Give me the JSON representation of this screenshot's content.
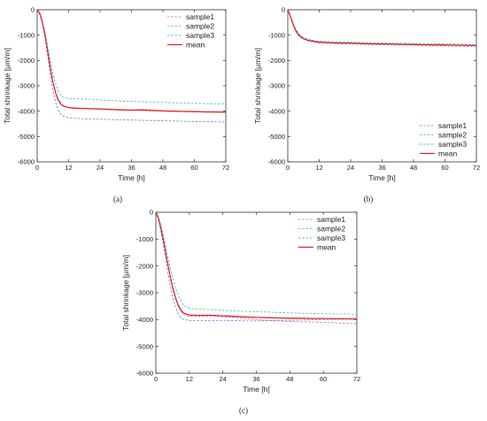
{
  "colors": {
    "sample1": "#d65fb0",
    "sample2": "#3dbfa1",
    "sample3": "#4e86c9",
    "mean": "#e0262a",
    "axis": "#333333"
  },
  "chart_data": [
    {
      "type": "line",
      "panel_label": "(a)",
      "xlabel": "Time [h]",
      "ylabel": "Total shrinkage [μm/m]",
      "xlim": [
        0,
        72
      ],
      "ylim": [
        -6000,
        0
      ],
      "xticks": [
        "0",
        "12",
        "24",
        "36",
        "48",
        "60",
        "72"
      ],
      "yticks": [
        "0",
        "-1000",
        "-2000",
        "-3000",
        "-4000",
        "-5000",
        "-6000"
      ],
      "legend_position": "top-right",
      "series": [
        {
          "name": "sample1",
          "style": "dash",
          "x": [
            0,
            1,
            2,
            3,
            4,
            5,
            6,
            7,
            8,
            9,
            10,
            12,
            14,
            16,
            18,
            20,
            24,
            28,
            32,
            36,
            40,
            44,
            48,
            52,
            56,
            60,
            64,
            68,
            72
          ],
          "y": [
            0,
            -150,
            -500,
            -1000,
            -1650,
            -2300,
            -2850,
            -3250,
            -3520,
            -3680,
            -3780,
            -3860,
            -3890,
            -3900,
            -3900,
            -3910,
            -3920,
            -3940,
            -3960,
            -3970,
            -3980,
            -3990,
            -4000,
            -4010,
            -4020,
            -4030,
            -4040,
            -4050,
            -4050
          ]
        },
        {
          "name": "sample2",
          "style": "dash",
          "x": [
            0,
            1,
            2,
            3,
            4,
            5,
            6,
            7,
            8,
            9,
            10,
            12,
            14,
            16,
            18,
            20,
            24,
            28,
            32,
            36,
            40,
            44,
            48,
            52,
            56,
            60,
            64,
            68,
            72
          ],
          "y": [
            0,
            -130,
            -450,
            -900,
            -1450,
            -2000,
            -2500,
            -2900,
            -3200,
            -3370,
            -3450,
            -3500,
            -3510,
            -3510,
            -3520,
            -3530,
            -3560,
            -3580,
            -3600,
            -3610,
            -3630,
            -3640,
            -3660,
            -3670,
            -3680,
            -3690,
            -3700,
            -3710,
            -3720
          ]
        },
        {
          "name": "sample3",
          "style": "dash",
          "x": [
            0,
            1,
            2,
            3,
            4,
            5,
            6,
            7,
            8,
            9,
            10,
            12,
            14,
            16,
            18,
            20,
            24,
            28,
            32,
            36,
            40,
            44,
            48,
            52,
            56,
            60,
            64,
            68,
            72
          ],
          "y": [
            0,
            -170,
            -550,
            -1100,
            -1800,
            -2550,
            -3200,
            -3650,
            -3950,
            -4120,
            -4200,
            -4260,
            -4280,
            -4290,
            -4300,
            -4310,
            -4320,
            -4330,
            -4340,
            -4350,
            -4360,
            -4370,
            -4380,
            -4390,
            -4400,
            -4410,
            -4420,
            -4420,
            -4430
          ]
        },
        {
          "name": "mean",
          "style": "solid",
          "x": [
            0,
            1,
            2,
            3,
            4,
            5,
            6,
            7,
            8,
            9,
            10,
            12,
            14,
            16,
            18,
            20,
            24,
            28,
            32,
            36,
            40,
            44,
            48,
            52,
            56,
            60,
            64,
            68,
            72
          ],
          "y": [
            0,
            -150,
            -500,
            -1000,
            -1630,
            -2280,
            -2850,
            -3270,
            -3560,
            -3720,
            -3800,
            -3860,
            -3880,
            -3890,
            -3890,
            -3900,
            -3910,
            -3930,
            -3950,
            -3960,
            -3950,
            -3970,
            -3990,
            -4000,
            -4010,
            -4020,
            -4030,
            -4030,
            -4040
          ]
        }
      ]
    },
    {
      "type": "line",
      "panel_label": "(b)",
      "xlabel": "Time [h]",
      "ylabel": "Total shrinkage [μm/m]",
      "xlim": [
        0,
        72
      ],
      "ylim": [
        -6000,
        0
      ],
      "xticks": [
        "0",
        "12",
        "24",
        "36",
        "48",
        "60",
        "72"
      ],
      "yticks": [
        "0",
        "-1000",
        "-2000",
        "-3000",
        "-4000",
        "-5000",
        "-6000"
      ],
      "legend_position": "bottom-right",
      "series": [
        {
          "name": "sample1",
          "style": "dash",
          "x": [
            0,
            1,
            2,
            3,
            4,
            5,
            6,
            8,
            10,
            12,
            16,
            20,
            24,
            30,
            36,
            42,
            48,
            54,
            60,
            66,
            72
          ],
          "y": [
            0,
            -300,
            -600,
            -850,
            -1000,
            -1100,
            -1160,
            -1240,
            -1280,
            -1310,
            -1330,
            -1340,
            -1350,
            -1370,
            -1380,
            -1390,
            -1400,
            -1420,
            -1430,
            -1440,
            -1450
          ]
        },
        {
          "name": "sample2",
          "style": "dash",
          "x": [
            0,
            1,
            2,
            3,
            4,
            5,
            6,
            8,
            10,
            12,
            16,
            20,
            24,
            30,
            36,
            42,
            48,
            54,
            60,
            66,
            72
          ],
          "y": [
            0,
            -250,
            -520,
            -760,
            -920,
            -1020,
            -1090,
            -1170,
            -1210,
            -1240,
            -1260,
            -1270,
            -1280,
            -1300,
            -1310,
            -1320,
            -1330,
            -1340,
            -1350,
            -1360,
            -1370
          ]
        },
        {
          "name": "sample3",
          "style": "dash",
          "x": [
            0,
            1,
            2,
            3,
            4,
            5,
            6,
            8,
            10,
            12,
            16,
            20,
            24,
            30,
            36,
            42,
            48,
            54,
            60,
            66,
            72
          ],
          "y": [
            0,
            -280,
            -580,
            -830,
            -990,
            -1090,
            -1160,
            -1230,
            -1270,
            -1290,
            -1310,
            -1320,
            -1330,
            -1340,
            -1350,
            -1360,
            -1370,
            -1380,
            -1390,
            -1400,
            -1410
          ]
        },
        {
          "name": "mean",
          "style": "solid",
          "x": [
            0,
            1,
            2,
            3,
            4,
            5,
            6,
            8,
            10,
            12,
            16,
            20,
            24,
            30,
            36,
            42,
            48,
            54,
            60,
            66,
            72
          ],
          "y": [
            0,
            -270,
            -560,
            -810,
            -970,
            -1070,
            -1140,
            -1210,
            -1250,
            -1280,
            -1300,
            -1310,
            -1320,
            -1340,
            -1350,
            -1360,
            -1370,
            -1380,
            -1390,
            -1400,
            -1410
          ]
        }
      ]
    },
    {
      "type": "line",
      "panel_label": "(c)",
      "xlabel": "Time [h]",
      "ylabel": "Total shrinkage [μm/m]",
      "xlim": [
        0,
        72
      ],
      "ylim": [
        -6000,
        0
      ],
      "xticks": [
        "0",
        "12",
        "24",
        "36",
        "48",
        "60",
        "72"
      ],
      "yticks": [
        "0",
        "-1000",
        "-2000",
        "-3000",
        "-4000",
        "-5000",
        "-6000"
      ],
      "legend_position": "top-right",
      "series": [
        {
          "name": "sample1",
          "style": "dash",
          "x": [
            0,
            1,
            2,
            3,
            4,
            5,
            6,
            7,
            8,
            9,
            10,
            12,
            14,
            16,
            20,
            24,
            28,
            32,
            36,
            40,
            44,
            48,
            52,
            56,
            60,
            64,
            68,
            72
          ],
          "y": [
            0,
            -250,
            -700,
            -1200,
            -1750,
            -2300,
            -2800,
            -3200,
            -3500,
            -3700,
            -3820,
            -3880,
            -3880,
            -3880,
            -3870,
            -3900,
            -3920,
            -3960,
            -4000,
            -4030,
            -4050,
            -4070,
            -4080,
            -4090,
            -4100,
            -4120,
            -4140,
            -4150
          ]
        },
        {
          "name": "sample2",
          "style": "dash",
          "x": [
            0,
            1,
            2,
            3,
            4,
            5,
            6,
            7,
            8,
            9,
            10,
            12,
            14,
            16,
            20,
            24,
            28,
            32,
            36,
            40,
            44,
            48,
            52,
            56,
            60,
            64,
            68,
            72
          ],
          "y": [
            0,
            -200,
            -560,
            -1000,
            -1500,
            -1980,
            -2420,
            -2800,
            -3100,
            -3320,
            -3470,
            -3580,
            -3600,
            -3610,
            -3630,
            -3660,
            -3680,
            -3700,
            -3710,
            -3720,
            -3740,
            -3750,
            -3760,
            -3770,
            -3780,
            -3790,
            -3790,
            -3800
          ]
        },
        {
          "name": "sample3",
          "style": "dash",
          "x": [
            0,
            1,
            2,
            3,
            4,
            5,
            6,
            7,
            8,
            9,
            10,
            12,
            14,
            16,
            20,
            24,
            28,
            32,
            36,
            40,
            44,
            48,
            52,
            56,
            60,
            64,
            68,
            72
          ],
          "y": [
            0,
            -300,
            -800,
            -1400,
            -2050,
            -2650,
            -3150,
            -3520,
            -3780,
            -3930,
            -4000,
            -4030,
            -4040,
            -4040,
            -4040,
            -4030,
            -4040,
            -4050,
            -4050,
            -4040,
            -4030,
            -4030,
            -4020,
            -4010,
            -4000,
            -3990,
            -3990,
            -3980
          ]
        },
        {
          "name": "mean",
          "style": "solid",
          "x": [
            0,
            1,
            2,
            3,
            4,
            5,
            6,
            7,
            8,
            9,
            10,
            12,
            14,
            16,
            20,
            24,
            28,
            32,
            36,
            40,
            44,
            48,
            52,
            56,
            60,
            64,
            68,
            72
          ],
          "y": [
            0,
            -250,
            -690,
            -1200,
            -1770,
            -2310,
            -2790,
            -3170,
            -3460,
            -3650,
            -3760,
            -3830,
            -3840,
            -3840,
            -3840,
            -3860,
            -3880,
            -3900,
            -3920,
            -3930,
            -3940,
            -3950,
            -3950,
            -3960,
            -3960,
            -3970,
            -3970,
            -3980
          ]
        }
      ]
    }
  ]
}
